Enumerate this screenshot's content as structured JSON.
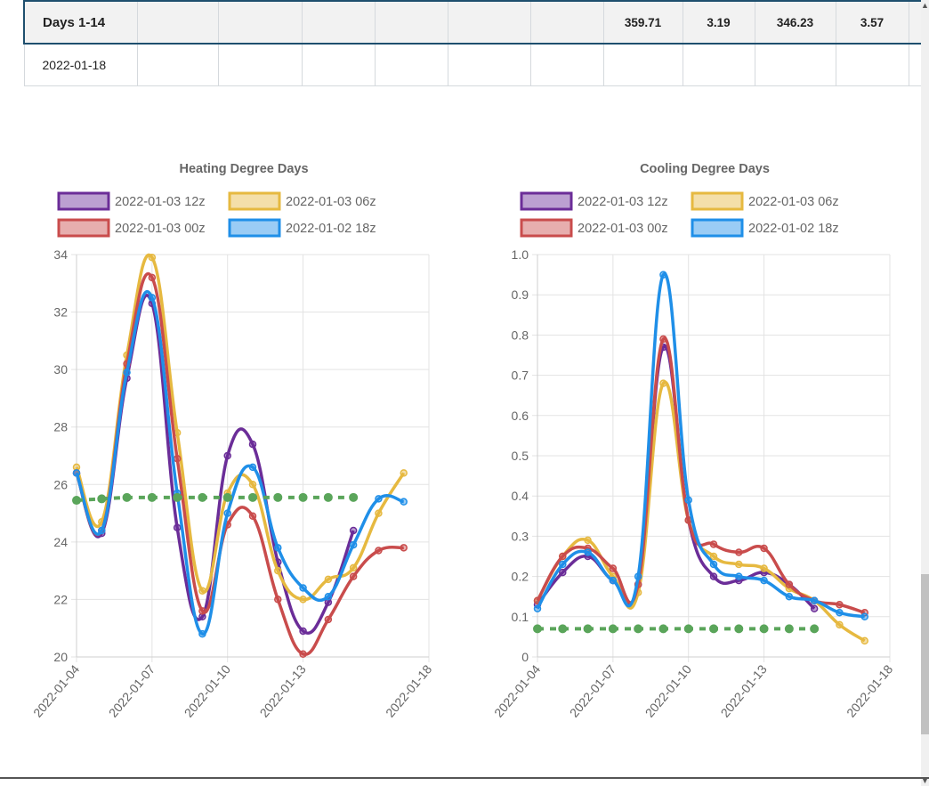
{
  "table": {
    "summary_row": {
      "label": "Days 1-14",
      "values": [
        "",
        "",
        "",
        "",
        "",
        "",
        "359.71",
        "3.19",
        "346.23",
        "3.57",
        ""
      ]
    },
    "date_row": {
      "label": "2022-01-18",
      "values": [
        "",
        "",
        "",
        "",
        "",
        "",
        "",
        "",
        "",
        "",
        ""
      ]
    }
  },
  "colors": {
    "run_12z": "#6b2d98",
    "run_06z": "#e6b940",
    "run_00z": "#c94c4c",
    "run_18z": "#1f8fe8",
    "normal": "#5aa55a",
    "header_border": "#1e4f6e"
  },
  "chart_data": [
    {
      "type": "line",
      "title": "Heating Degree Days",
      "xlabel": "",
      "ylabel": "",
      "x": [
        "2022-01-04",
        "2022-01-05",
        "2022-01-06",
        "2022-01-07",
        "2022-01-08",
        "2022-01-09",
        "2022-01-10",
        "2022-01-11",
        "2022-01-12",
        "2022-01-13",
        "2022-01-14",
        "2022-01-15",
        "2022-01-16",
        "2022-01-17"
      ],
      "x_ticks": [
        "2022-01-04",
        "2022-01-07",
        "2022-01-10",
        "2022-01-13",
        "2022-01-18"
      ],
      "ylim": [
        20,
        34
      ],
      "y_ticks": [
        "20",
        "22",
        "24",
        "26",
        "28",
        "30",
        "32",
        "34"
      ],
      "grid": true,
      "legend_position": "top",
      "series": [
        {
          "name": "2022-01-03 12z",
          "color": "#6b2d98",
          "values": [
            26.4,
            24.3,
            29.7,
            32.3,
            24.5,
            21.4,
            27.0,
            27.4,
            23.3,
            20.9,
            21.9,
            24.4,
            null,
            null
          ]
        },
        {
          "name": "2022-01-03 06z",
          "color": "#e6b940",
          "values": [
            26.6,
            24.7,
            30.5,
            33.9,
            27.8,
            22.3,
            25.7,
            26.0,
            23.0,
            22.0,
            22.7,
            23.1,
            25.0,
            26.4
          ]
        },
        {
          "name": "2022-01-03 00z",
          "color": "#c94c4c",
          "values": [
            26.4,
            24.4,
            30.2,
            33.2,
            26.9,
            21.6,
            24.6,
            24.9,
            22.0,
            20.1,
            21.3,
            22.8,
            23.7,
            23.8
          ]
        },
        {
          "name": "2022-01-02 18z",
          "color": "#1f8fe8",
          "values": [
            26.4,
            24.4,
            29.9,
            32.5,
            25.7,
            20.8,
            25.0,
            26.6,
            23.8,
            22.4,
            22.1,
            23.9,
            25.5,
            25.4
          ]
        },
        {
          "name": "",
          "color": "#5aa55a",
          "dashed": true,
          "values": [
            25.45,
            25.5,
            25.55,
            25.55,
            25.55,
            25.55,
            25.55,
            25.55,
            25.55,
            25.55,
            25.55,
            25.55,
            null,
            null
          ]
        }
      ]
    },
    {
      "type": "line",
      "title": "Cooling Degree Days",
      "xlabel": "",
      "ylabel": "",
      "x": [
        "2022-01-04",
        "2022-01-05",
        "2022-01-06",
        "2022-01-07",
        "2022-01-08",
        "2022-01-09",
        "2022-01-10",
        "2022-01-11",
        "2022-01-12",
        "2022-01-13",
        "2022-01-14",
        "2022-01-15",
        "2022-01-16",
        "2022-01-17"
      ],
      "x_ticks": [
        "2022-01-04",
        "2022-01-07",
        "2022-01-10",
        "2022-01-13",
        "2022-01-18"
      ],
      "ylim": [
        0,
        1.0
      ],
      "y_ticks": [
        "0",
        "0.1",
        "0.2",
        "0.3",
        "0.4",
        "0.5",
        "0.6",
        "0.7",
        "0.8",
        "0.9",
        "1.0"
      ],
      "grid": true,
      "legend_position": "top",
      "series": [
        {
          "name": "2022-01-03 12z",
          "color": "#6b2d98",
          "values": [
            0.13,
            0.21,
            0.25,
            0.19,
            0.18,
            0.77,
            0.34,
            0.2,
            0.19,
            0.21,
            0.18,
            0.12,
            null,
            null
          ]
        },
        {
          "name": "2022-01-03 06z",
          "color": "#e6b940",
          "values": [
            0.14,
            0.25,
            0.29,
            0.2,
            0.16,
            0.68,
            0.34,
            0.25,
            0.23,
            0.22,
            0.17,
            0.14,
            0.08,
            0.04
          ]
        },
        {
          "name": "2022-01-03 00z",
          "color": "#c94c4c",
          "values": [
            0.14,
            0.25,
            0.27,
            0.22,
            0.18,
            0.79,
            0.34,
            0.28,
            0.26,
            0.27,
            0.18,
            0.14,
            0.13,
            0.11
          ]
        },
        {
          "name": "2022-01-02 18z",
          "color": "#1f8fe8",
          "values": [
            0.12,
            0.23,
            0.26,
            0.19,
            0.2,
            0.95,
            0.39,
            0.23,
            0.2,
            0.19,
            0.15,
            0.14,
            0.11,
            0.1
          ]
        },
        {
          "name": "",
          "color": "#5aa55a",
          "dashed": true,
          "values": [
            0.07,
            0.07,
            0.07,
            0.07,
            0.07,
            0.07,
            0.07,
            0.07,
            0.07,
            0.07,
            0.07,
            0.07,
            null,
            null
          ]
        }
      ]
    }
  ]
}
